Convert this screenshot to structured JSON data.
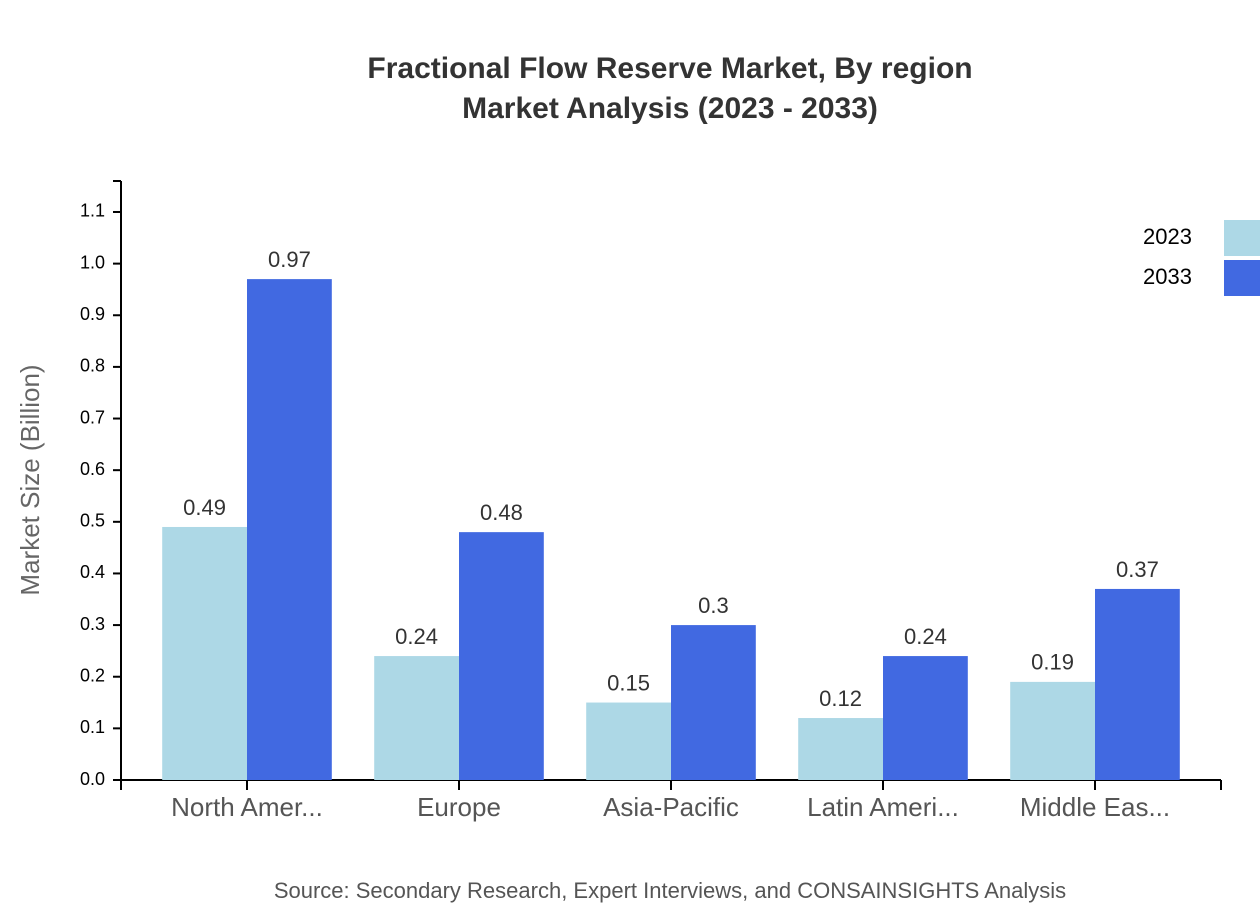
{
  "chart_data": {
    "type": "bar",
    "title": "Fractional Flow Reserve Market, By region",
    "subtitle": "Market Analysis (2023 - 2033)",
    "y_label": "Market Size (Billion)",
    "source": "Source: Secondary Research, Expert Interviews, and CONSAINSIGHTS Analysis",
    "categories": [
      "North Amer...",
      "Europe",
      "Asia-Pacific",
      "Latin Ameri...",
      "Middle Eas..."
    ],
    "series": [
      {
        "name": "2023",
        "color": "#add8e6",
        "values": [
          0.49,
          0.24,
          0.15,
          0.12,
          0.19
        ]
      },
      {
        "name": "2033",
        "color": "#4169e1",
        "values": [
          0.97,
          0.48,
          0.3,
          0.24,
          0.37
        ]
      }
    ],
    "ylim": [
      0,
      1.16
    ],
    "yticks": [
      {
        "value": 0,
        "label": "0.0"
      },
      0.1,
      0.2,
      0.3,
      0.4,
      0.5,
      0.6,
      0.7,
      0.8,
      0.9,
      {
        "value": 1,
        "label": "1.0"
      },
      1.1
    ],
    "legend": "top-right"
  }
}
